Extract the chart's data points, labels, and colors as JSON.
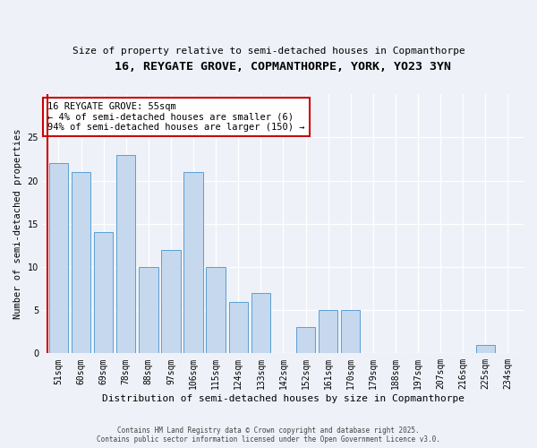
{
  "title1": "16, REYGATE GROVE, COPMANTHORPE, YORK, YO23 3YN",
  "title2": "Size of property relative to semi-detached houses in Copmanthorpe",
  "xlabel": "Distribution of semi-detached houses by size in Copmanthorpe",
  "ylabel": "Number of semi-detached properties",
  "categories": [
    "51sqm",
    "60sqm",
    "69sqm",
    "78sqm",
    "88sqm",
    "97sqm",
    "106sqm",
    "115sqm",
    "124sqm",
    "133sqm",
    "142sqm",
    "152sqm",
    "161sqm",
    "170sqm",
    "179sqm",
    "188sqm",
    "197sqm",
    "207sqm",
    "216sqm",
    "225sqm",
    "234sqm"
  ],
  "values": [
    22,
    21,
    14,
    23,
    10,
    12,
    21,
    10,
    6,
    7,
    0,
    3,
    5,
    5,
    0,
    0,
    0,
    0,
    0,
    1,
    0
  ],
  "bar_color": "#c5d8ed",
  "bar_edge_color": "#5a9fd4",
  "annotation_box_color": "#ffffff",
  "annotation_border_color": "#cc0000",
  "annotation_text_line1": "16 REYGATE GROVE: 55sqm",
  "annotation_text_line2": "← 4% of semi-detached houses are smaller (6)",
  "annotation_text_line3": "94% of semi-detached houses are larger (150) →",
  "ylim": [
    0,
    30
  ],
  "yticks": [
    0,
    5,
    10,
    15,
    20,
    25
  ],
  "footer_line1": "Contains HM Land Registry data © Crown copyright and database right 2025.",
  "footer_line2": "Contains public sector information licensed under the Open Government Licence v3.0.",
  "bg_color": "#eef2f8"
}
